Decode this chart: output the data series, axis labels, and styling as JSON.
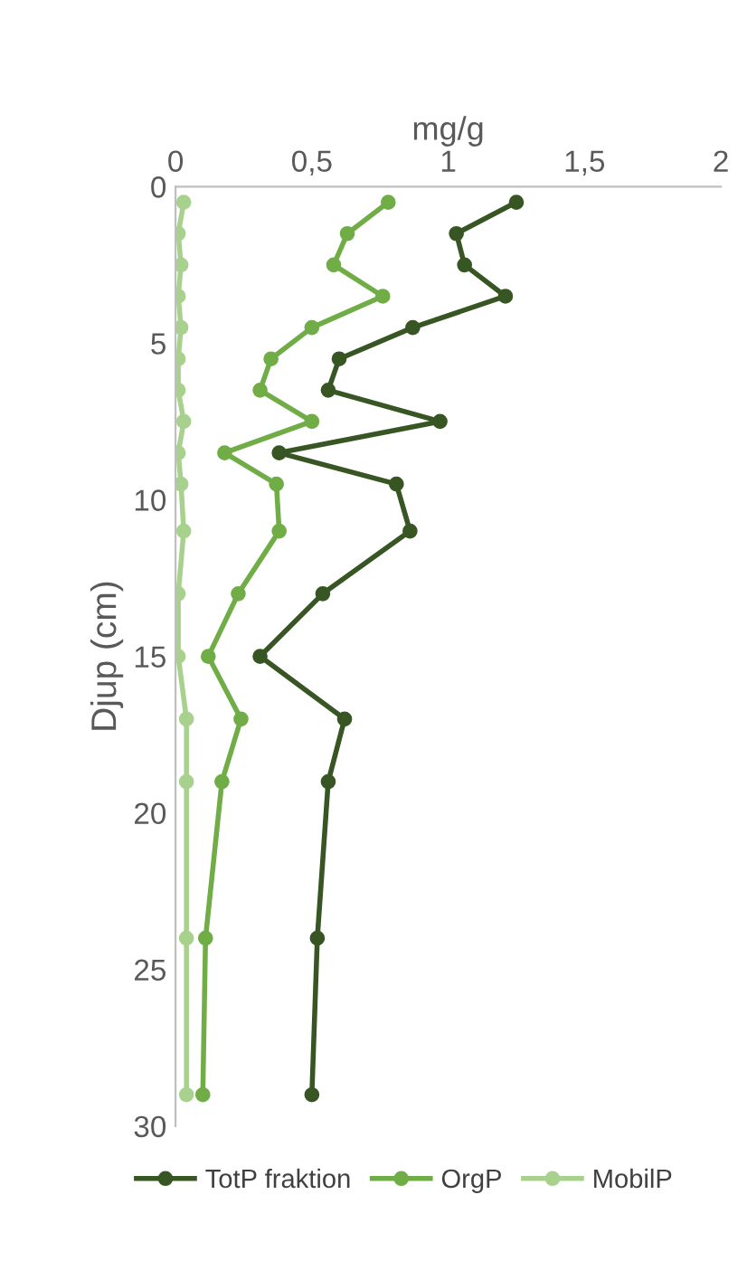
{
  "chart_data": {
    "type": "line",
    "xlabel": "mg/g",
    "ylabel": "Djup (cm)",
    "xlim": [
      0,
      2
    ],
    "xticks": [
      0,
      {
        "value": 0.5,
        "label": "0,5"
      },
      1,
      {
        "value": 1.5,
        "label": "1,5"
      },
      2
    ],
    "ylim": [
      30,
      0
    ],
    "yticks": [
      0,
      5,
      10,
      15,
      20,
      25,
      30
    ],
    "grid": false,
    "legend": "bottom",
    "marker": "circle",
    "line_style": "solid",
    "series": [
      {
        "name": "TotP fraktion",
        "color": "#375623",
        "x": [
          1.25,
          1.03,
          1.06,
          1.21,
          0.87,
          0.6,
          0.56,
          0.97,
          0.38,
          0.81,
          0.86,
          0.54,
          0.31,
          0.62,
          0.56,
          0.52,
          0.5
        ],
        "values": [
          0.5,
          1.5,
          2.5,
          3.5,
          4.5,
          5.5,
          6.5,
          7.5,
          8.5,
          9.5,
          11,
          13,
          15,
          17,
          19,
          24,
          29
        ]
      },
      {
        "name": "OrgP",
        "color": "#70ad47",
        "x": [
          0.78,
          0.63,
          0.58,
          0.76,
          0.5,
          0.35,
          0.31,
          0.5,
          0.18,
          0.37,
          0.38,
          0.23,
          0.12,
          0.24,
          0.17,
          0.11,
          0.1
        ],
        "values": [
          0.5,
          1.5,
          2.5,
          3.5,
          4.5,
          5.5,
          6.5,
          7.5,
          8.5,
          9.5,
          11,
          13,
          15,
          17,
          19,
          24,
          29
        ]
      },
      {
        "name": "MobilP",
        "color": "#a9d18e",
        "x": [
          0.03,
          0.01,
          0.02,
          0.01,
          0.02,
          0.01,
          0.01,
          0.03,
          0.01,
          0.02,
          0.03,
          0.01,
          0.01,
          0.04,
          0.04,
          0.04,
          0.04
        ],
        "values": [
          0.5,
          1.5,
          2.5,
          3.5,
          4.5,
          5.5,
          6.5,
          7.5,
          8.5,
          9.5,
          11,
          13,
          15,
          17,
          19,
          24,
          29
        ]
      }
    ]
  }
}
